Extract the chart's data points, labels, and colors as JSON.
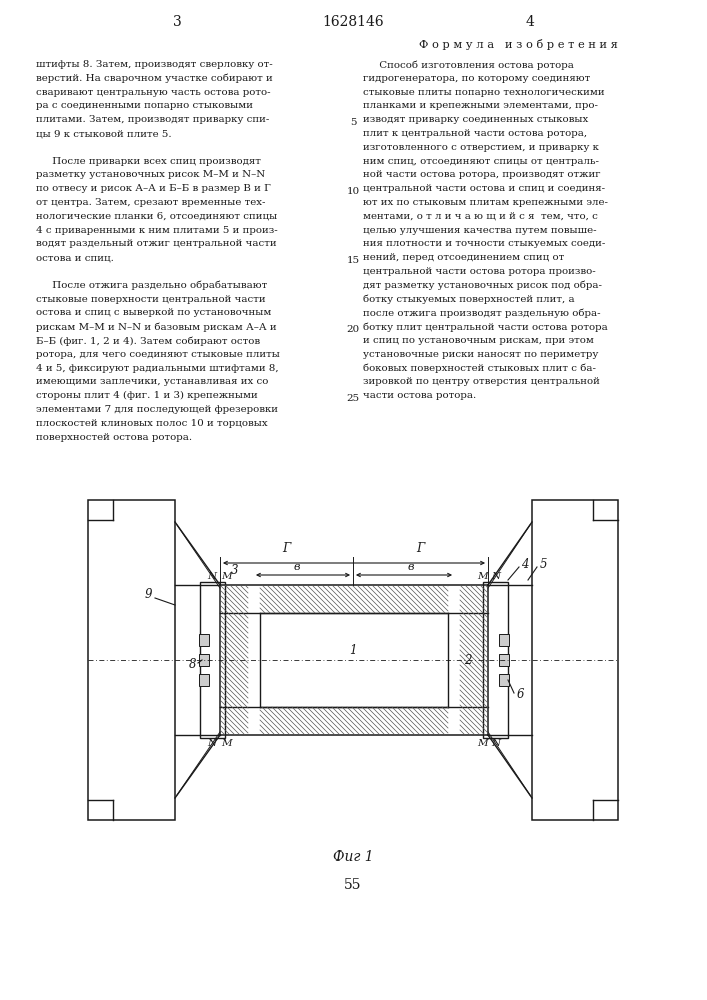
{
  "page_number_left": "3",
  "patent_number": "1628146",
  "page_number_right": "4",
  "formula_title": "Ф о р м у л а   и з о б р е т е н и я",
  "left_text": [
    "штифты 8. Затем, производят сверловку от-",
    "верстий. На сварочном участке собирают и",
    "сваривают центральную часть остова рото-",
    "ра с соединенными попарно стыковыми",
    "плитами. Затем, производят приварку спи-",
    "цы 9 к стыковой плите 5.",
    "",
    "     После приварки всех спиц производят",
    "разметку установочных рисок М–М и N–N",
    "по отвесу и рисок А–А и Б–Б в размер В и Г",
    "от центра. Затем, срезают временные тех-",
    "нологические планки 6, отсоединяют спицы",
    "4 с приваренными к ним плитами 5 и произ-",
    "водят раздельный отжиг центральной части",
    "остова и спиц.",
    "",
    "     После отжига раздельно обрабатывают",
    "стыковые поверхности центральной части",
    "остова и спиц с выверкой по установочным",
    "рискам М–М и N–N и базовым рискам А–А и",
    "Б–Б (фиг. 1, 2 и 4). Затем собирают остов",
    "ротора, для чего соединяют стыковые плиты",
    "4 и 5, фиксируют радиальными штифтами 8,",
    "имеющими заплечики, устанавливая их со",
    "стороны плит 4 (фиг. 1 и 3) крепежными",
    "элементами 7 для последующей фрезеровки",
    "плоскостей клиновых полос 10 и торцовых",
    "поверхностей остова ротора."
  ],
  "right_text": [
    "     Способ изготовления остова ротора",
    "гидрогенератора, по которому соединяют",
    "стыковые плиты попарно технологическими",
    "планками и крепежными элементами, про-",
    "изводят приварку соединенных стыковых",
    "плит к центральной части остова ротора,",
    "изготовленного с отверстием, и приварку к",
    "ним спиц, отсоединяют спицы от централь-",
    "ной части остова ротора, производят отжиг",
    "центральной части остова и спиц и соединя-",
    "ют их по стыковым плитам крепежными эле-",
    "ментами, о т л и ч а ю щ и й с я  тем, что, с",
    "целью улучшения качества путем повыше-",
    "ния плотности и точности стыкуемых соеди-",
    "нений, перед отсоединением спиц от",
    "центральной части остова ротора произво-",
    "дят разметку установочных рисок под обра-",
    "ботку стыкуемых поверхностей плит, а",
    "после отжига производят раздельную обра-",
    "ботку плит центральной части остова ротора",
    "и спиц по установочным рискам, при этом",
    "установочные риски наносят по периметру",
    "боковых поверхностей стыковых плит с ба-",
    "зировкой по центру отверстия центральной",
    "части остова ротора."
  ],
  "line_numbers": [
    "5",
    "10",
    "15",
    "20",
    "25"
  ],
  "fig_caption": "Фиг 1",
  "page_bottom": "55",
  "bg_color": "#ffffff",
  "text_color": "#1a1a1a",
  "draw_color": "#1a1a1a"
}
